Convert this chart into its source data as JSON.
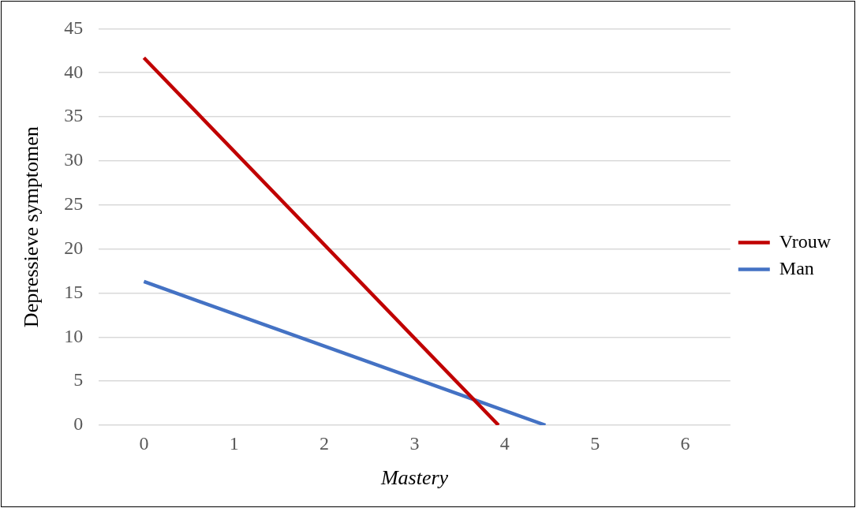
{
  "chart_data": {
    "type": "line",
    "xlabel": "Mastery",
    "ylabel": "Depressieve symptomen",
    "series": [
      {
        "name": "Vrouw",
        "color": "#c00000",
        "x": [
          0,
          3.93
        ],
        "values": [
          41.7,
          0
        ]
      },
      {
        "name": "Man",
        "color": "#4472c4",
        "x": [
          0,
          4.45
        ],
        "values": [
          16.3,
          0
        ]
      }
    ],
    "xlim": [
      -0.5,
      6.5
    ],
    "xticks": [
      0,
      1,
      2,
      3,
      4,
      5,
      6
    ],
    "ylim": [
      0,
      45
    ],
    "yticks": [
      0,
      5,
      10,
      15,
      20,
      25,
      30,
      35,
      40,
      45
    ],
    "grid": "y",
    "legend": "right",
    "marker": "none",
    "line_style": "solid"
  }
}
